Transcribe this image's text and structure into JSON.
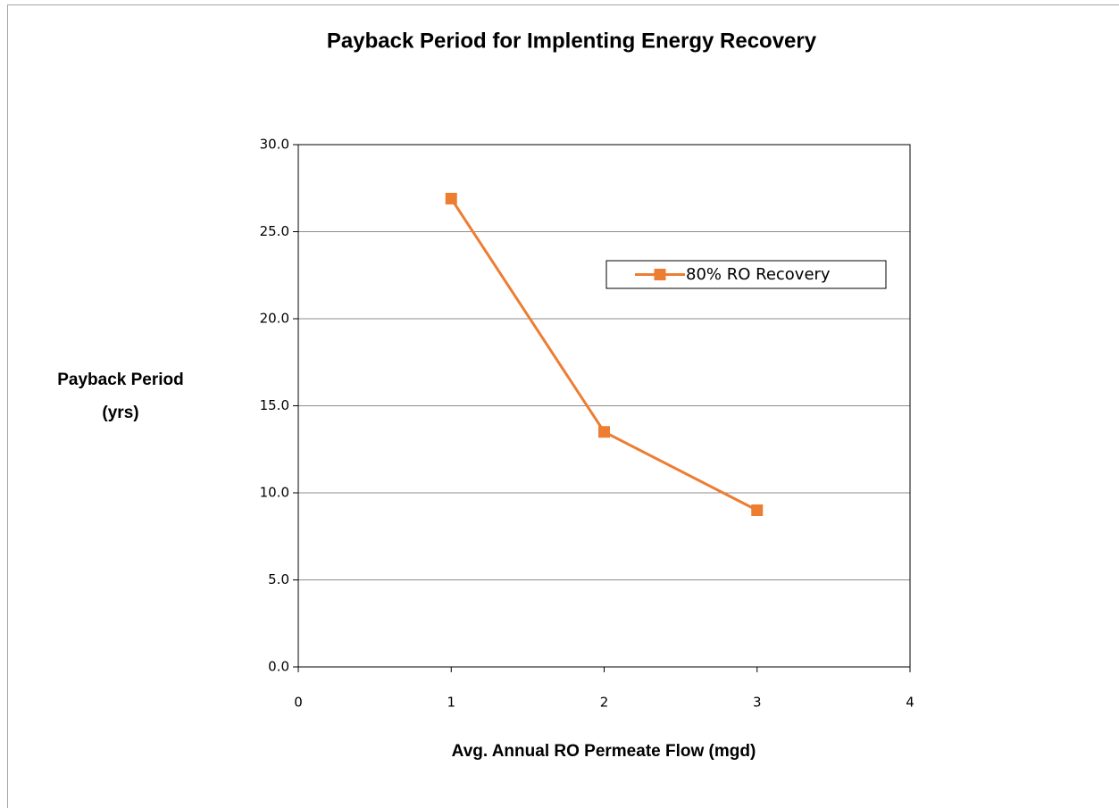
{
  "chart_data": {
    "type": "line",
    "title": "Payback Period for Implenting Energy Recovery",
    "x_label": "Avg. Annual RO Permeate Flow (mgd)",
    "y_label": [
      "Payback Period",
      "(yrs)"
    ],
    "x": [
      1,
      2,
      3
    ],
    "series": [
      {
        "name": "80% RO Recovery",
        "color": "#ed7d31",
        "values": [
          26.9,
          13.5,
          9.0
        ]
      }
    ],
    "xlim": [
      0,
      4
    ],
    "xticks": [
      0,
      1,
      2,
      3,
      4
    ],
    "ylim": [
      0,
      30
    ],
    "yticks": [
      {
        "value": 0,
        "label": "0.0"
      },
      {
        "value": 5,
        "label": "5.0"
      },
      {
        "value": 10,
        "label": "10.0"
      },
      {
        "value": 15,
        "label": "15.0"
      },
      {
        "value": 20,
        "label": "20.0"
      },
      {
        "value": 25,
        "label": "25.0"
      },
      {
        "value": 30,
        "label": "30.0"
      }
    ],
    "grid": true,
    "legend": "upper right"
  }
}
